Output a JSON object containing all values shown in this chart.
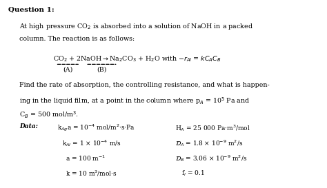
{
  "background_color": "#ffffff",
  "figsize": [
    4.74,
    2.73
  ],
  "dpi": 100,
  "title": "Question 1:",
  "line1": "At high pressure CO$_2$ is absorbed into a solution of NaOH in a packed",
  "line2": "column. The reaction is as follows:",
  "equation": "CO$_2$ + 2NaOH→Na$_2$CO$_3$ + H$_2$O with −r$_{Al}$ = kC$_A$C$_B$",
  "label_A": "(A)",
  "label_B": "(B)",
  "find_line1": "Find the rate of absorption, the controlling resistance, and what is happen-",
  "find_line2": "ing in the liquid film, at a point in the column where p$_A$ = 10$^5$ Pa and",
  "find_line3": "C$_B$ = 500 mol/m$^3$.",
  "data_label": "Data:",
  "d1l": "k$_{Ag}$a = 10$^{-4}$ mol/m$^2$·s·Pa",
  "d1r": "H$_A$ = 25 000 Pa·m$^3$/mol",
  "d2l": "k$_{Al}$ = 1 × 10$^{-4}$ m/s",
  "d2r": "$\\mathcal{D}_A$ = 1.8 × 10$^{-9}$ m$^2$/s",
  "d3l": "a = 100 m$^{-1}$",
  "d3r": "$\\mathcal{D}_B$ = 3.06 × 10$^{-9}$ m$^2$/s",
  "d4l": "k = 10 m$^3$/mol·s",
  "d4r": "f$_l$ = 0.1",
  "fs_title": 7.5,
  "fs_body": 6.8,
  "fs_eq": 6.8,
  "fs_data": 6.5
}
